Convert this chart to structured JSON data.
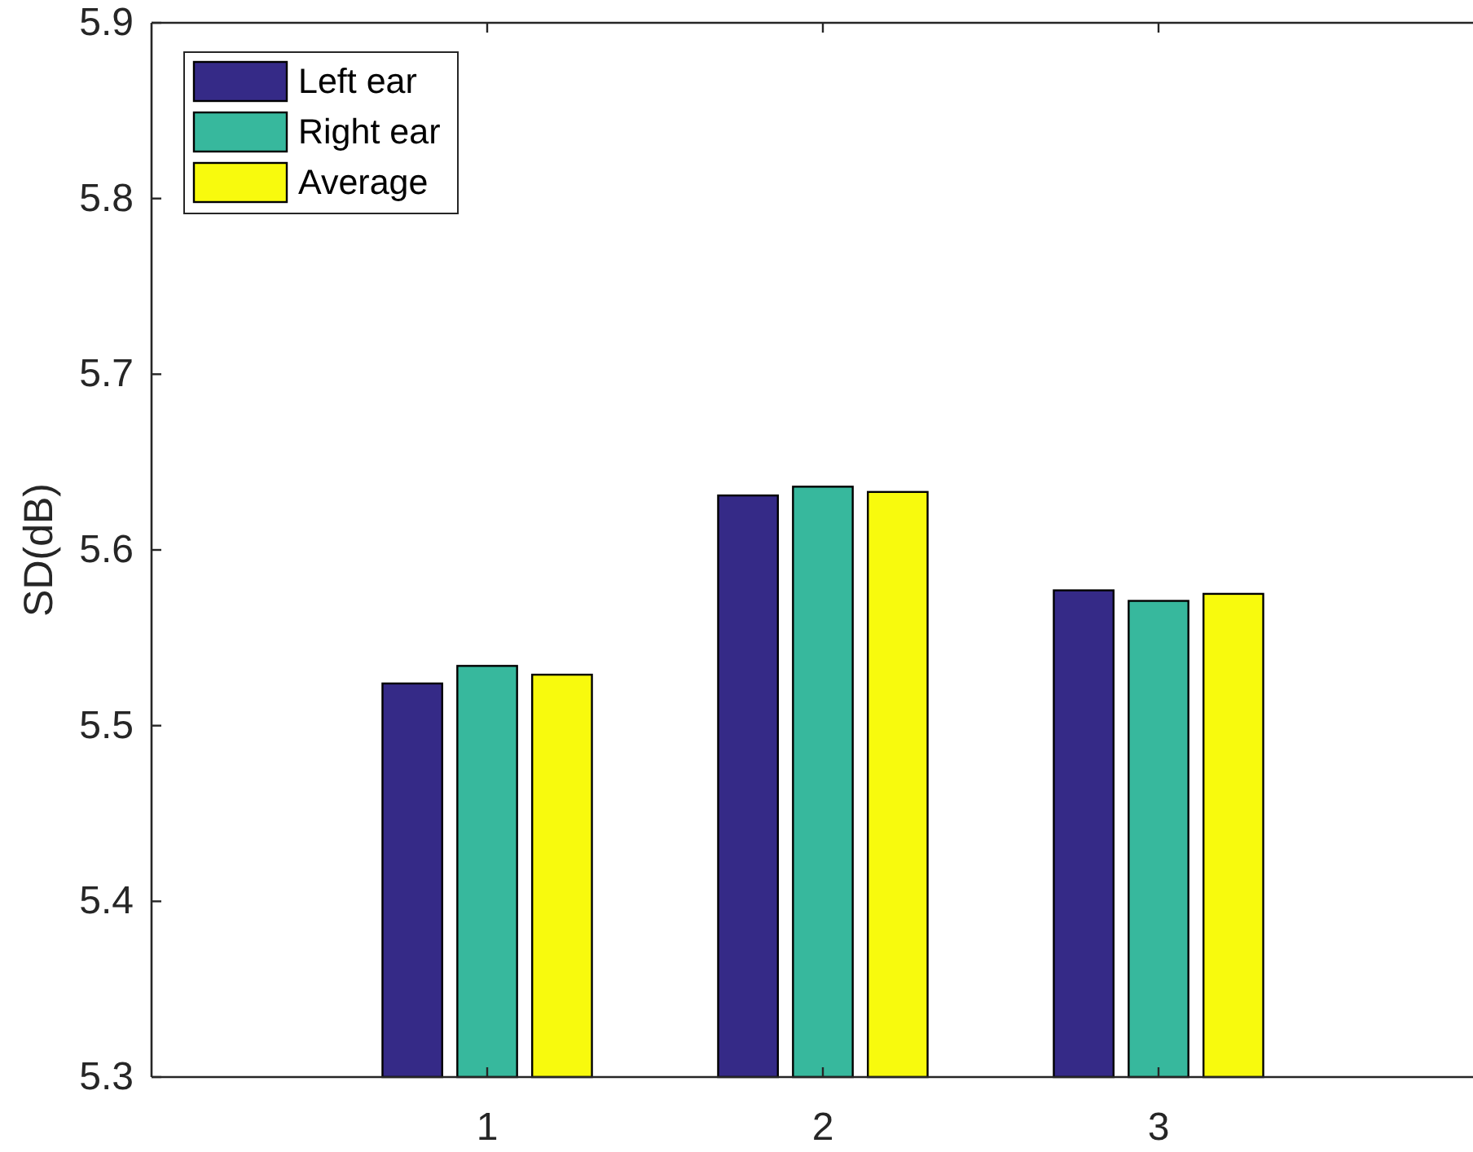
{
  "chart_data": {
    "type": "bar",
    "ylabel": "SD(dB)",
    "categories": [
      "1",
      "2",
      "3"
    ],
    "series": [
      {
        "name": "Left ear",
        "color": "#352a87",
        "values": [
          5.524,
          5.631,
          5.577
        ]
      },
      {
        "name": "Right ear",
        "color": "#37b89d",
        "values": [
          5.534,
          5.636,
          5.571
        ]
      },
      {
        "name": "Average",
        "color": "#f8fa0d",
        "values": [
          5.529,
          5.633,
          5.575
        ]
      }
    ],
    "ylim": [
      5.3,
      5.9
    ],
    "yticks": [
      5.3,
      5.4,
      5.5,
      5.6,
      5.7,
      5.8,
      5.9
    ],
    "legend": "top left"
  }
}
